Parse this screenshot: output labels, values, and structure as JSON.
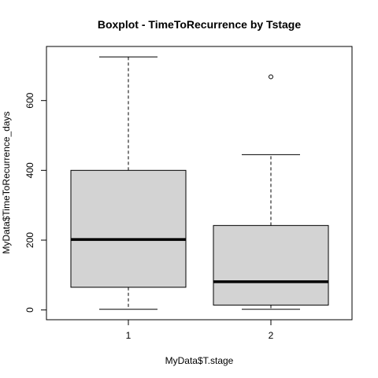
{
  "chart_data": {
    "type": "boxplot",
    "title": "Boxplot - TimeToRecurrence by Tstage",
    "xlabel": "MyData$T.stage",
    "ylabel": "MyData$TimeToRecurrence_days",
    "categories": [
      "1",
      "2"
    ],
    "boxes": [
      {
        "category": "1",
        "whisker_low": 2,
        "q1": 65,
        "median": 202,
        "q3": 400,
        "whisker_high": 725,
        "outliers": []
      },
      {
        "category": "2",
        "whisker_low": 2,
        "q1": 14,
        "median": 81,
        "q3": 242,
        "whisker_high": 445,
        "outliers": [
          668
        ]
      }
    ],
    "ylim": [
      -28,
      755
    ],
    "yticks": [
      0,
      200,
      400,
      600
    ],
    "box_fill": "#d3d3d3",
    "grid": false
  }
}
